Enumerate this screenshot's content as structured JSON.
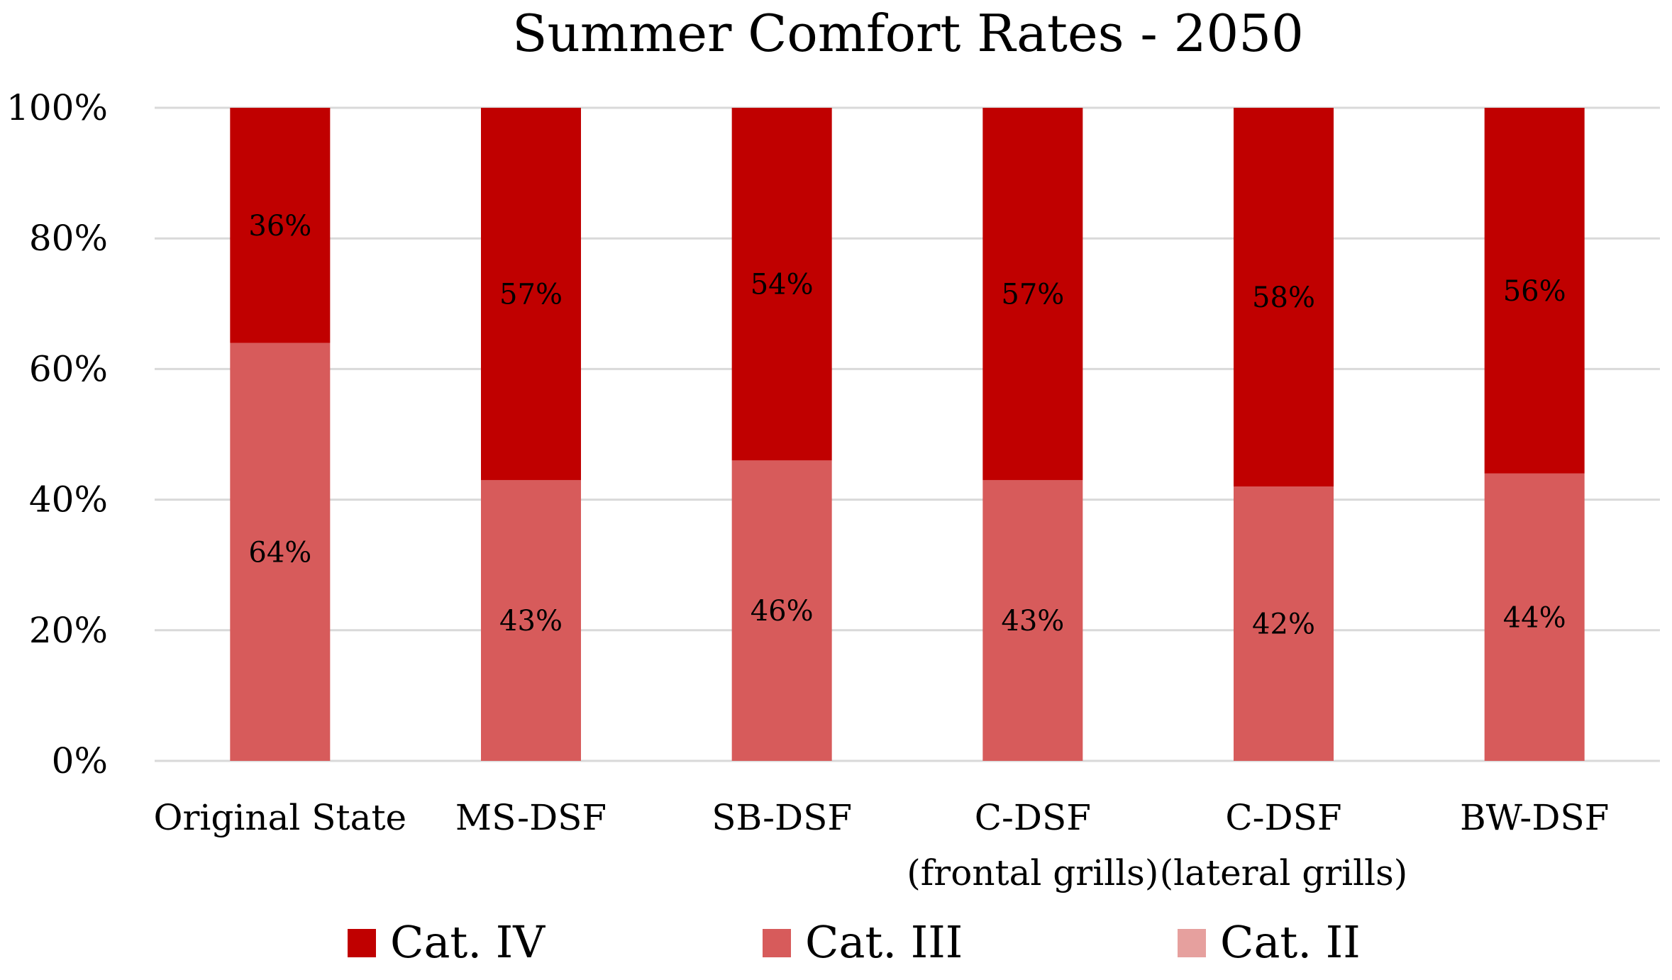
{
  "chart_data": {
    "type": "bar",
    "stacked": true,
    "title": "Summer Comfort Rates - 2050",
    "xlabel": "",
    "ylabel": "",
    "ylim": [
      0,
      100
    ],
    "y_ticks": [
      "0%",
      "20%",
      "40%",
      "60%",
      "80%",
      "100%"
    ],
    "grid": true,
    "legend_position": "bottom",
    "categories": [
      [
        "Original State"
      ],
      [
        "MS-DSF"
      ],
      [
        "SB-DSF"
      ],
      [
        "C-DSF",
        "(frontal grills)"
      ],
      [
        "C-DSF",
        "(lateral grills)"
      ],
      [
        "BW-DSF"
      ]
    ],
    "series": [
      {
        "name": "Cat. IV",
        "color": "#c00000",
        "values": [
          36,
          57,
          54,
          57,
          58,
          56
        ],
        "labels": [
          "36%",
          "57%",
          "54%",
          "57%",
          "58%",
          "56%"
        ]
      },
      {
        "name": "Cat. III",
        "color": "#d75b5b",
        "values": [
          64,
          43,
          46,
          43,
          42,
          44
        ],
        "labels": [
          "64%",
          "43%",
          "46%",
          "43%",
          "42%",
          "44%"
        ]
      },
      {
        "name": "Cat. II",
        "color": "#e6a09e",
        "values": [
          0,
          0,
          0,
          0,
          0,
          0
        ],
        "labels": []
      }
    ]
  }
}
